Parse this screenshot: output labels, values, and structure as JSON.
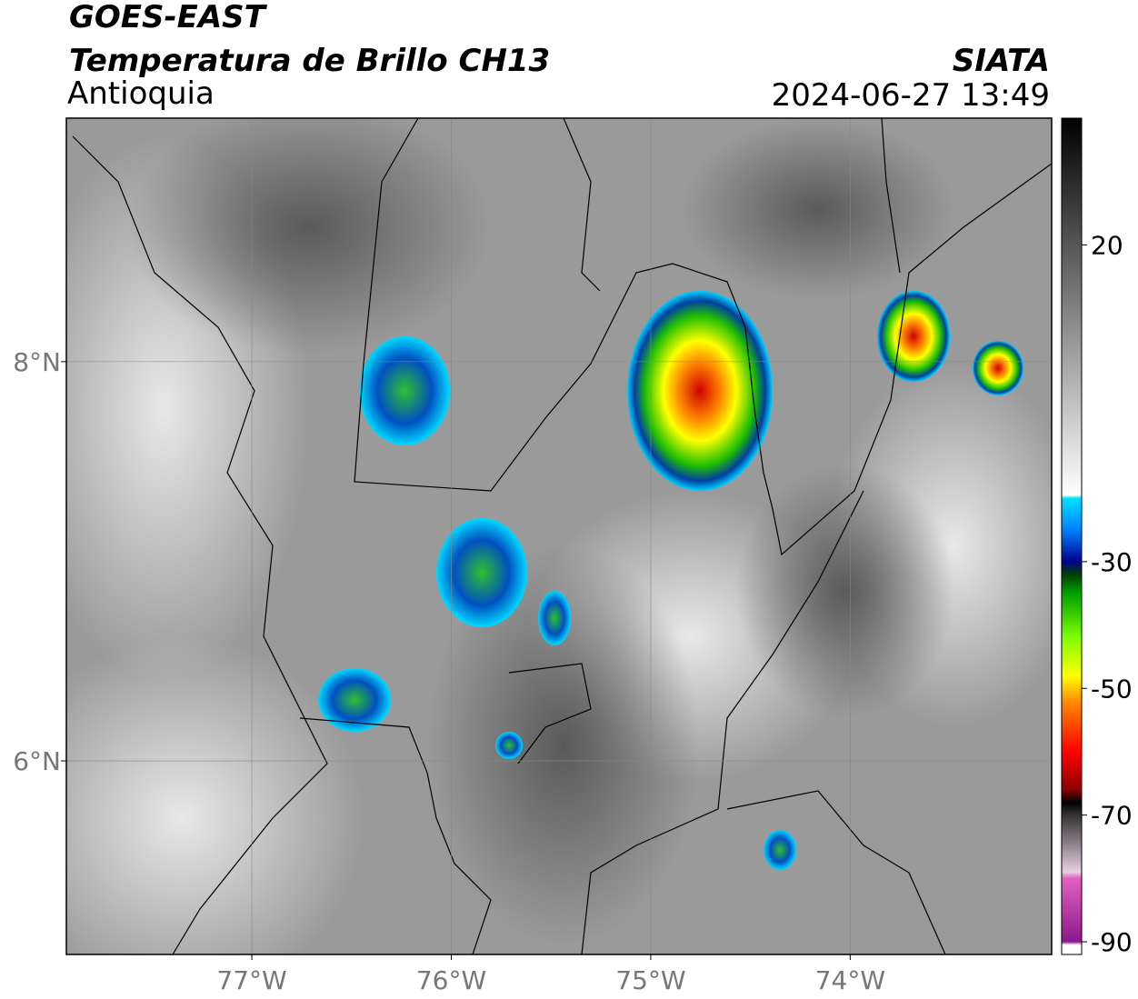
{
  "chart_data": {
    "type": "map",
    "title": "GOES-EAST",
    "subtitle": "Temperatura de Brillo CH13",
    "region": "Antioquia",
    "source": "SIATA",
    "datetime": "2024-06-27 13:49",
    "xlim": [
      -77.93,
      -72.99
    ],
    "ylim": [
      5.03,
      9.22
    ],
    "xticks": [
      {
        "value": -77,
        "label": "77°W"
      },
      {
        "value": -76,
        "label": "76°W"
      },
      {
        "value": -75,
        "label": "75°W"
      },
      {
        "value": -74,
        "label": "74°W"
      }
    ],
    "yticks": [
      {
        "value": 8,
        "label": "8°N"
      },
      {
        "value": 6,
        "label": "6°N"
      }
    ],
    "grid": true,
    "colorbar": {
      "lim": [
        -92,
        40
      ],
      "ticks": [
        20,
        -30,
        -50,
        -70,
        -90
      ],
      "stops": [
        {
          "value": -92,
          "color": "#ffffff"
        },
        {
          "value": -90.5,
          "color": "#ffffff"
        },
        {
          "value": -90,
          "color": "#8b1a8b"
        },
        {
          "value": -80,
          "color": "#e060c0"
        },
        {
          "value": -79,
          "color": "#e8d0e0"
        },
        {
          "value": -70,
          "color": "#333333"
        },
        {
          "value": -68,
          "color": "#000000"
        },
        {
          "value": -66,
          "color": "#8b0000"
        },
        {
          "value": -60,
          "color": "#ff0000"
        },
        {
          "value": -52,
          "color": "#ff8c00"
        },
        {
          "value": -48,
          "color": "#ffff00"
        },
        {
          "value": -42,
          "color": "#7fff00"
        },
        {
          "value": -35,
          "color": "#00a000"
        },
        {
          "value": -32,
          "color": "#004000"
        },
        {
          "value": -30,
          "color": "#00008b"
        },
        {
          "value": -25,
          "color": "#0080ff"
        },
        {
          "value": -20,
          "color": "#00e0ff"
        },
        {
          "value": -19.5,
          "color": "#ffffff"
        },
        {
          "value": 40,
          "color": "#000000"
        }
      ]
    }
  }
}
